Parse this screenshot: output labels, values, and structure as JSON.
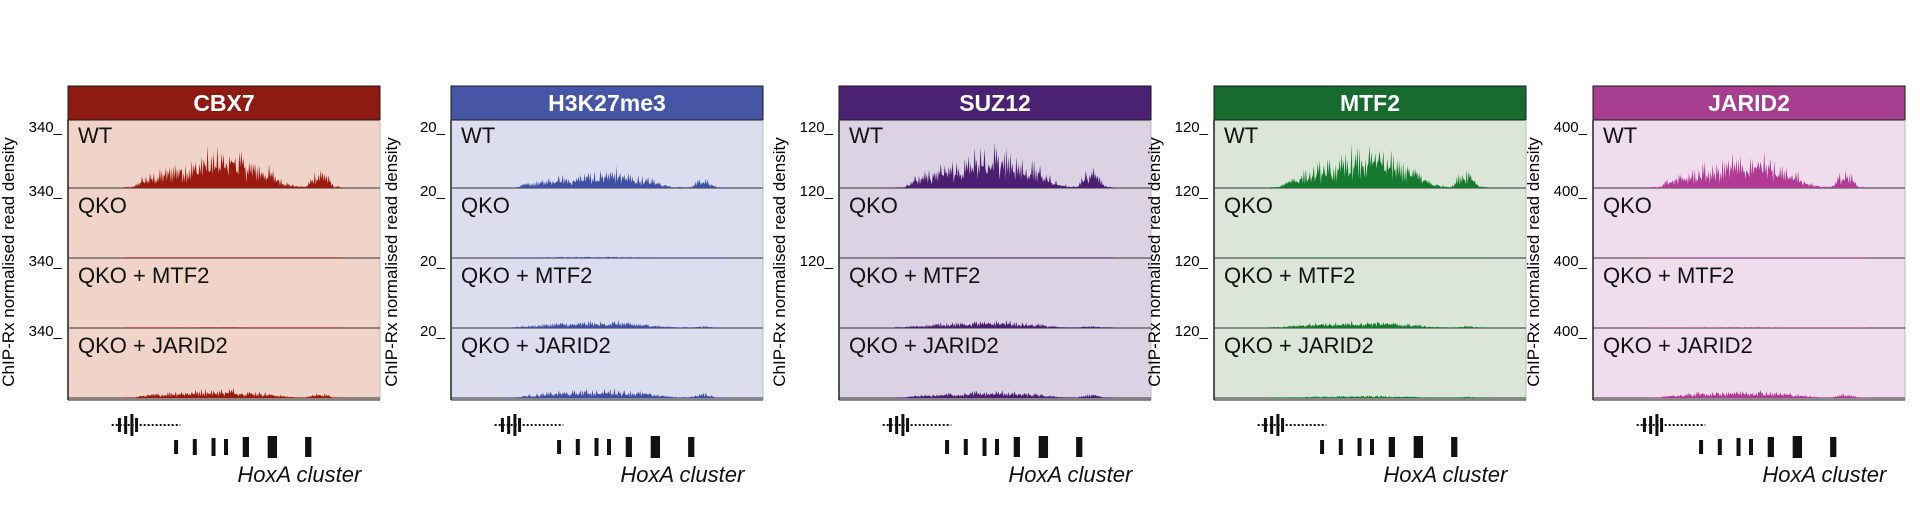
{
  "chart_data": [
    {
      "type": "area",
      "title": "CBX7",
      "ylabel": "ChIP-Rx normalised read density",
      "xlabel": "HoxA cluster",
      "ylim": [
        0,
        340
      ],
      "tracks": [
        {
          "name": "WT",
          "ymax_label": "340"
        },
        {
          "name": "QKO",
          "ymax_label": "340"
        },
        {
          "name": "QKO + MTF2",
          "ymax_label": "340"
        },
        {
          "name": "QKO + JARID2",
          "ymax_label": "340"
        }
      ],
      "colors": {
        "header": "#8e1b12",
        "panel": "#f0d4ca",
        "signal": "#9b1a10"
      }
    },
    {
      "type": "area",
      "title": "H3K27me3",
      "ylabel": "ChIP-Rx normalised read density",
      "xlabel": "HoxA cluster",
      "ylim": [
        0,
        20
      ],
      "tracks": [
        {
          "name": "WT",
          "ymax_label": "20"
        },
        {
          "name": "QKO",
          "ymax_label": "20"
        },
        {
          "name": "QKO + MTF2",
          "ymax_label": "20"
        },
        {
          "name": "QKO + JARID2",
          "ymax_label": "20"
        }
      ],
      "colors": {
        "header": "#4655a5",
        "panel": "#dcdef0",
        "signal": "#3e50a3"
      }
    },
    {
      "type": "area",
      "title": "SUZ12",
      "ylabel": "ChIP-Rx normalised read density",
      "xlabel": "HoxA cluster",
      "ylim": [
        0,
        120
      ],
      "tracks": [
        {
          "name": "WT",
          "ymax_label": "120"
        },
        {
          "name": "QKO",
          "ymax_label": "120"
        },
        {
          "name": "QKO + MTF2",
          "ymax_label": "120"
        },
        {
          "name": "QKO + JARID2",
          "ymax_label": ""
        }
      ],
      "colors": {
        "header": "#4b2273",
        "panel": "#dbd2e4",
        "signal": "#4b1e72"
      }
    },
    {
      "type": "area",
      "title": "MTF2",
      "ylabel": "ChIP-Rx normalised read density",
      "xlabel": "HoxA cluster",
      "ylim": [
        0,
        120
      ],
      "tracks": [
        {
          "name": "WT",
          "ymax_label": "120"
        },
        {
          "name": "QKO",
          "ymax_label": "120"
        },
        {
          "name": "QKO + MTF2",
          "ymax_label": "120"
        },
        {
          "name": "QKO + JARID2",
          "ymax_label": "120"
        }
      ],
      "colors": {
        "header": "#176b2f",
        "panel": "#dce6d8",
        "signal": "#157a2d"
      }
    },
    {
      "type": "area",
      "title": "JARID2",
      "ylabel": "ChIP-Rx normalised read density",
      "xlabel": "HoxA cluster",
      "ylim": [
        0,
        400
      ],
      "tracks": [
        {
          "name": "WT",
          "ymax_label": "400"
        },
        {
          "name": "QKO",
          "ymax_label": "400"
        },
        {
          "name": "QKO + MTF2",
          "ymax_label": "400"
        },
        {
          "name": "QKO + JARID2",
          "ymax_label": "400"
        }
      ],
      "colors": {
        "header": "#a53e8e",
        "panel": "#efdcec",
        "signal": "#b03a94"
      }
    }
  ],
  "profiles": {
    "WT": [
      0.02,
      0.03,
      0.22,
      0.28,
      0.35,
      0.45,
      0.55,
      0.5,
      0.62,
      0.8,
      0.7,
      0.82,
      0.9,
      0.72,
      0.55,
      0.5,
      0.42,
      0.25,
      0.1,
      0.05,
      0.04,
      0.35,
      0.4,
      0.05,
      0.02
    ],
    "QKO": [
      0.01,
      0.01,
      0.02,
      0.03,
      0.03,
      0.04,
      0.05,
      0.04,
      0.05,
      0.05,
      0.04,
      0.05,
      0.05,
      0.04,
      0.04,
      0.03,
      0.03,
      0.02,
      0.02,
      0.01,
      0.01,
      0.02,
      0.02,
      0.01,
      0.01
    ],
    "QKO + MTF2": [
      0.02,
      0.03,
      0.05,
      0.06,
      0.08,
      0.1,
      0.12,
      0.1,
      0.12,
      0.14,
      0.12,
      0.14,
      0.15,
      0.12,
      0.1,
      0.09,
      0.08,
      0.05,
      0.03,
      0.02,
      0.02,
      0.04,
      0.04,
      0.02,
      0.01
    ],
    "QKO + JARID2": [
      0.02,
      0.03,
      0.15,
      0.18,
      0.22,
      0.28,
      0.32,
      0.3,
      0.35,
      0.4,
      0.36,
      0.4,
      0.42,
      0.35,
      0.3,
      0.28,
      0.22,
      0.15,
      0.08,
      0.04,
      0.04,
      0.2,
      0.22,
      0.04,
      0.02
    ]
  },
  "track_scale": {
    "CBX7": [
      1.0,
      0.12,
      0.12,
      0.45
    ],
    "H3K27me3": [
      0.45,
      0.55,
      0.95,
      0.45
    ],
    "SUZ12": [
      1.0,
      0.05,
      1.0,
      0.35
    ],
    "MTF2": [
      1.0,
      0.04,
      1.0,
      0.12
    ],
    "JARID2": [
      0.85,
      0.08,
      0.15,
      0.4
    ]
  }
}
